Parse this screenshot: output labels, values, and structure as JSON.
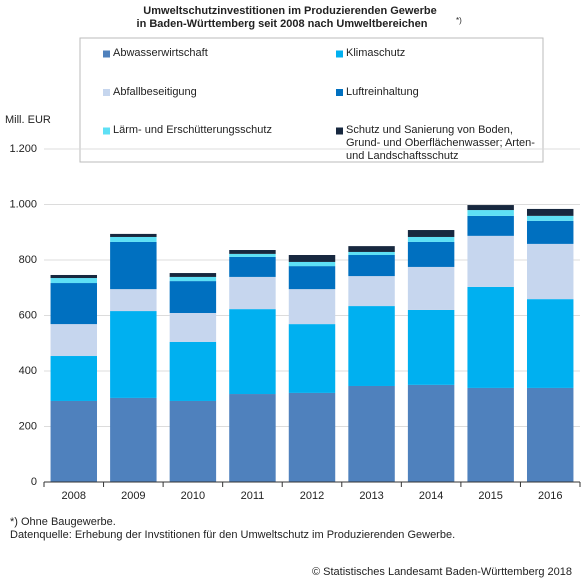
{
  "chart_data": {
    "type": "stacked_bar",
    "title": [
      "Umweltschutzinvestitionen im Produzierenden Gewerbe",
      "in Baden-Württemberg seit 2008 nach Umweltbereichen"
    ],
    "title_note": "*)",
    "y_label": "Mill. EUR",
    "categories": [
      "2008",
      "2009",
      "2010",
      "2011",
      "2012",
      "2013",
      "2014",
      "2015",
      "2016"
    ],
    "series": [
      {
        "name": "Abwasserwirtschaft",
        "color": "#4f81bd",
        "values": [
          292,
          303,
          292,
          317,
          321,
          346,
          350,
          339,
          339
        ]
      },
      {
        "name": "Klimaschutz",
        "color": "#00b0f0",
        "values": [
          162,
          313,
          213,
          306,
          248,
          288,
          270,
          364,
          320
        ]
      },
      {
        "name": "Abfallbeseitigung",
        "color": "#c6d6ee",
        "values": [
          115,
          79,
          104,
          116,
          126,
          108,
          155,
          184,
          199
        ]
      },
      {
        "name": "Luftreinhaltung",
        "color": "#0070c0",
        "values": [
          148,
          170,
          115,
          72,
          83,
          76,
          90,
          72,
          83
        ]
      },
      {
        "name": "Lärm- und Erschütterungsschutz",
        "color": "#5ee0f5",
        "values": [
          18,
          18,
          15,
          11,
          15,
          11,
          18,
          21,
          18
        ]
      },
      {
        "name": "Schutz und Sanierung von Boden, Grund- und Oberflächenwasser; Arten- und Landschaftsschutz",
        "color": "#17283f",
        "values": [
          11,
          11,
          14,
          14,
          25,
          21,
          25,
          18,
          25
        ]
      }
    ],
    "ylim": [
      0,
      1200
    ],
    "yticks": [
      0,
      200,
      400,
      600,
      800,
      {
        "value": 1000,
        "label": "1.000"
      },
      {
        "value": 1200,
        "label": "1.200"
      }
    ],
    "grid": true,
    "footnotes": [
      "*) Ohne Baugewerbe.",
      "Datenquelle: Erhebung der Invstitionen für den Umweltschutz im Produzierenden Gewerbe."
    ],
    "source": "© Statistisches Landesamt Baden-Württemberg 2018"
  }
}
